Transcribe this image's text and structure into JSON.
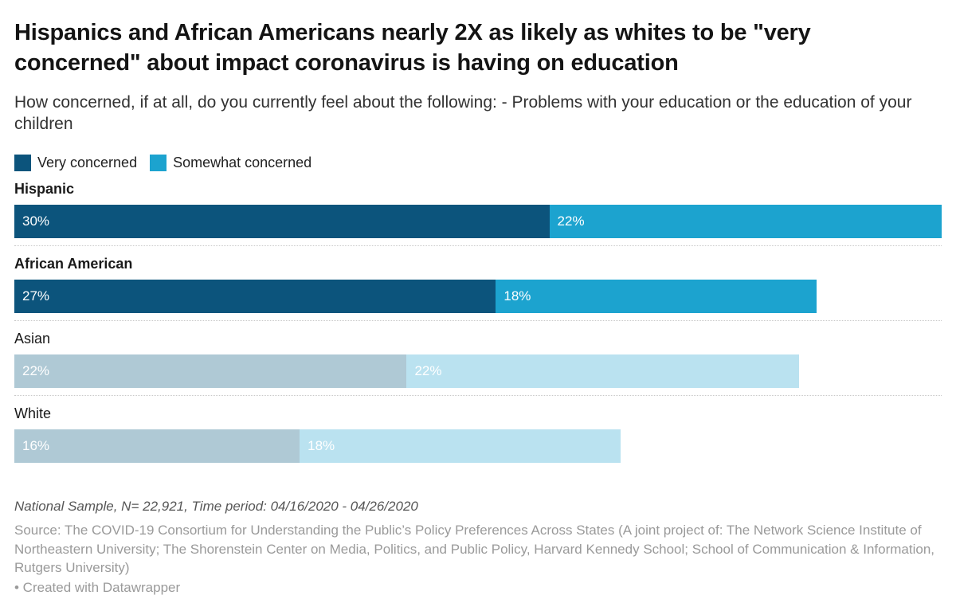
{
  "chart": {
    "title": "Hispanics and African Americans nearly 2X as likely as whites to be \"very concerned\" about impact coronavirus is having on education",
    "subtitle": "How concerned, if at all, do you currently feel about the following: - Problems with your education or the education of your children",
    "note": "National Sample, N= 22,921, Time period: 04/16/2020 - 04/26/2020",
    "source": "Source: The COVID-19 Consortium for Understanding the Public’s Policy Preferences Across States (A joint project of: The Network Science Institute of Northeastern University; The Shorenstein Center on Media, Politics, and Public Policy, Harvard Kennedy School; School of Communication & Information, Rutgers University)",
    "attribution": "• Created with Datawrapper"
  },
  "chart_data": {
    "type": "bar",
    "variant": "horizontal-stacked",
    "unit": "percent",
    "x_max_percent": 52,
    "grid": false,
    "legend_position": "top",
    "legend": [
      {
        "label": "Very concerned",
        "color": "#0C547C"
      },
      {
        "label": "Somewhat concerned",
        "color": "#1CA3CF"
      }
    ],
    "categories": [
      "Hispanic",
      "African American",
      "Asian",
      "White"
    ],
    "series": [
      {
        "name": "Very concerned",
        "values": [
          30,
          27,
          22,
          16
        ]
      },
      {
        "name": "Somewhat concerned",
        "values": [
          22,
          18,
          22,
          18
        ]
      }
    ],
    "colors": {
      "very": "#0C547C",
      "somewhat": "#1CA3CF",
      "very_faded": "#AFC9D5",
      "somewhat_faded": "#BAE2F0",
      "bar_label_text": "#FFFFFF",
      "separator": "#C9C9C9"
    },
    "rows": [
      {
        "category": "Hispanic",
        "bold": true,
        "faded": false,
        "values": [
          30,
          22
        ],
        "labels": [
          "30%",
          "22%"
        ]
      },
      {
        "category": "African American",
        "bold": true,
        "faded": false,
        "values": [
          27,
          18
        ],
        "labels": [
          "27%",
          "18%"
        ]
      },
      {
        "category": "Asian",
        "bold": false,
        "faded": true,
        "values": [
          22,
          22
        ],
        "labels": [
          "22%",
          "22%"
        ]
      },
      {
        "category": "White",
        "bold": false,
        "faded": true,
        "values": [
          16,
          18
        ],
        "labels": [
          "16%",
          "18%"
        ]
      }
    ]
  }
}
